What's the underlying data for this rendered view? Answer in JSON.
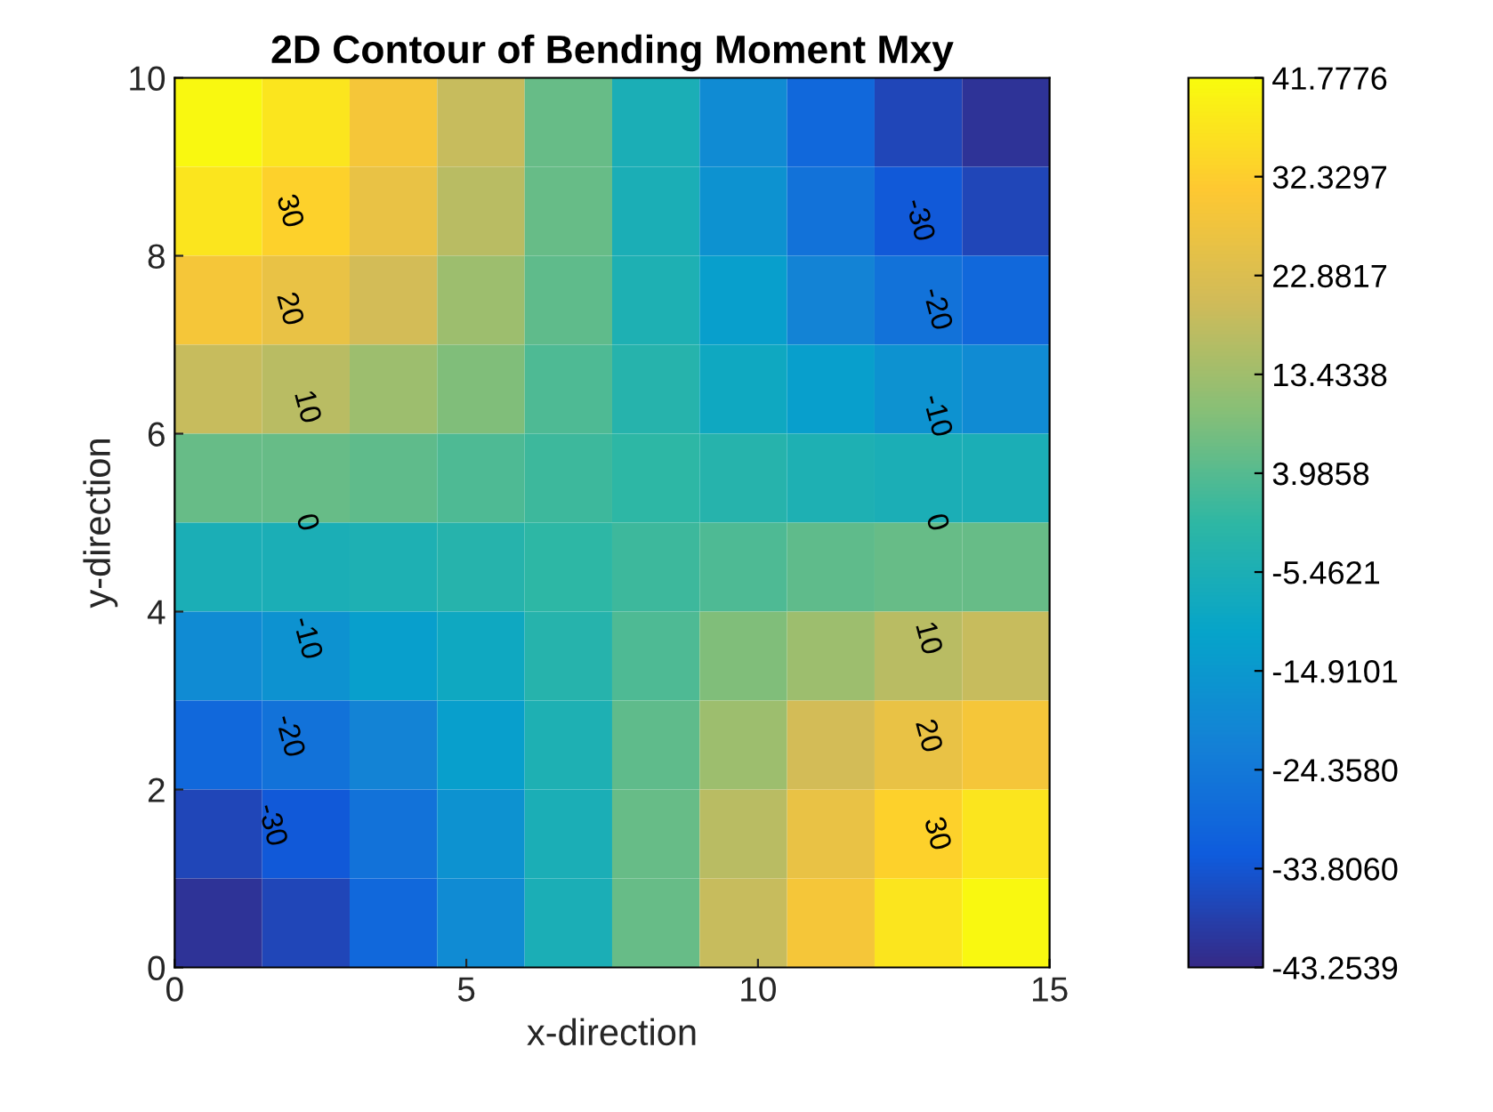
{
  "chart_data": {
    "type": "heatmap",
    "title": "2D Contour of Bending Moment Mxy",
    "xlabel": "x-direction",
    "ylabel": "y-direction",
    "x": [
      0.75,
      2.25,
      3.75,
      5.25,
      6.75,
      8.25,
      9.75,
      11.25,
      12.75,
      14.25
    ],
    "y": [
      9.5,
      8.5,
      7.5,
      6.5,
      5.5,
      4.5,
      3.5,
      2.5,
      1.5,
      0.5
    ],
    "cells": [
      [
        41,
        37,
        29,
        19,
        6,
        -6,
        -19,
        -29,
        -37,
        -41
      ],
      [
        37,
        33,
        26,
        17,
        6,
        -6,
        -17,
        -26,
        -33,
        -37
      ],
      [
        29,
        26,
        21,
        13,
        5,
        -5,
        -13,
        -21,
        -26,
        -29
      ],
      [
        19,
        17,
        13,
        9,
        3,
        -3,
        -9,
        -13,
        -17,
        -19
      ],
      [
        6,
        6,
        5,
        3,
        1,
        -1,
        -3,
        -5,
        -6,
        -6
      ],
      [
        -6,
        -6,
        -5,
        -3,
        -1,
        1,
        3,
        5,
        6,
        6
      ],
      [
        -19,
        -17,
        -13,
        -9,
        -3,
        3,
        9,
        13,
        17,
        19
      ],
      [
        -29,
        -26,
        -21,
        -13,
        -5,
        5,
        13,
        21,
        26,
        29
      ],
      [
        -37,
        -33,
        -26,
        -17,
        -6,
        6,
        17,
        26,
        33,
        37
      ],
      [
        -41,
        -37,
        -29,
        -19,
        -6,
        6,
        19,
        29,
        37,
        41
      ]
    ],
    "xlim": [
      0,
      15
    ],
    "ylim": [
      0,
      10
    ],
    "xticks": [
      0,
      5,
      10,
      15
    ],
    "yticks": [
      0,
      2,
      4,
      6,
      8,
      10
    ],
    "clim": [
      -43.2539,
      41.7776
    ],
    "cticks": [
      {
        "value": 41.7776,
        "label": "41.7776"
      },
      {
        "value": 32.3297,
        "label": "32.3297"
      },
      {
        "value": 22.8817,
        "label": "22.8817"
      },
      {
        "value": 13.4338,
        "label": "13.4338"
      },
      {
        "value": 3.9858,
        "label": "3.9858"
      },
      {
        "value": -5.4621,
        "label": "-5.4621"
      },
      {
        "value": -14.9101,
        "label": "-14.9101"
      },
      {
        "value": -24.358,
        "label": "-24.3580"
      },
      {
        "value": -33.806,
        "label": "-33.8060"
      },
      {
        "value": -43.2539,
        "label": "-43.2539"
      }
    ],
    "annotations": [
      "30",
      "20",
      "10",
      "0",
      "-10",
      "-20",
      "-30",
      "-30",
      "-20",
      "-10",
      "0",
      "10",
      "20",
      "30"
    ]
  }
}
